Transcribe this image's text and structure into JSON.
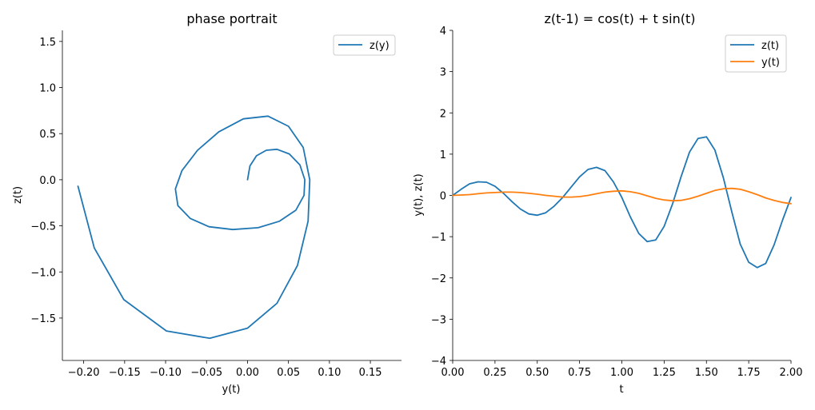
{
  "chart_data": [
    {
      "type": "line",
      "title": "phase portrait",
      "xlabel": "y(t)",
      "ylabel": "z(t)",
      "xlim": [
        -0.226,
        0.188
      ],
      "ylim": [
        -1.96,
        1.62
      ],
      "xticks": [
        -0.2,
        -0.15,
        -0.1,
        -0.05,
        0.0,
        0.05,
        0.1,
        0.15
      ],
      "xtick_labels": [
        "−0.20",
        "−0.15",
        "−0.10",
        "−0.05",
        "0.00",
        "0.05",
        "0.10",
        "0.15"
      ],
      "yticks": [
        -1.5,
        -1.0,
        -0.5,
        0.0,
        0.5,
        1.0,
        1.5
      ],
      "ytick_labels": [
        "−1.5",
        "−1.0",
        "−0.5",
        "0.0",
        "0.5",
        "1.0",
        "1.5"
      ],
      "legend_position": "top-right",
      "series": [
        {
          "name": "z(y)",
          "color": "#1f77b4",
          "x": [
            0.0,
            0.003,
            0.011,
            0.023,
            0.036,
            0.051,
            0.064,
            0.07,
            0.069,
            0.059,
            0.039,
            0.013,
            -0.018,
            -0.047,
            -0.07,
            -0.085,
            -0.088,
            -0.08,
            -0.061,
            -0.035,
            -0.005,
            0.025,
            0.05,
            0.068,
            0.076,
            0.074,
            0.061,
            0.036,
            0.0,
            -0.046,
            -0.099,
            -0.151,
            -0.187,
            -0.207
          ],
          "y": [
            0.0,
            0.15,
            0.26,
            0.32,
            0.33,
            0.28,
            0.16,
            0.0,
            -0.17,
            -0.33,
            -0.45,
            -0.52,
            -0.54,
            -0.51,
            -0.42,
            -0.28,
            -0.1,
            0.1,
            0.32,
            0.52,
            0.66,
            0.69,
            0.58,
            0.35,
            0.0,
            -0.45,
            -0.93,
            -1.34,
            -1.61,
            -1.72,
            -1.64,
            -1.3,
            -0.74,
            -0.07
          ]
        }
      ]
    },
    {
      "type": "line",
      "title": "z(t-1) = cos(t) + t sin(t)",
      "xlabel": "t",
      "ylabel": "y(t), z(t)",
      "xlim": [
        0.0,
        2.0
      ],
      "ylim": [
        -4.0,
        4.0
      ],
      "xticks": [
        0.0,
        0.25,
        0.5,
        0.75,
        1.0,
        1.25,
        1.5,
        1.75,
        2.0
      ],
      "xtick_labels": [
        "0.00",
        "0.25",
        "0.50",
        "0.75",
        "1.00",
        "1.25",
        "1.50",
        "1.75",
        "2.00"
      ],
      "yticks": [
        -4,
        -3,
        -2,
        -1,
        0,
        1,
        2,
        3,
        4
      ],
      "ytick_labels": [
        "−4",
        "−3",
        "−2",
        "−1",
        "0",
        "1",
        "2",
        "3",
        "4"
      ],
      "legend_position": "top-right",
      "x": [
        0.0,
        0.05,
        0.1,
        0.15,
        0.2,
        0.25,
        0.3,
        0.35,
        0.4,
        0.45,
        0.5,
        0.55,
        0.6,
        0.65,
        0.7,
        0.75,
        0.8,
        0.85,
        0.9,
        0.95,
        1.0,
        1.05,
        1.1,
        1.15,
        1.2,
        1.25,
        1.3,
        1.35,
        1.4,
        1.45,
        1.5,
        1.55,
        1.6,
        1.65,
        1.7,
        1.75,
        1.8,
        1.85,
        1.9,
        1.95,
        2.0
      ],
      "series": [
        {
          "name": "z(t)",
          "color": "#1f77b4",
          "values": [
            0.0,
            0.15,
            0.28,
            0.33,
            0.32,
            0.22,
            0.05,
            -0.15,
            -0.33,
            -0.45,
            -0.48,
            -0.42,
            -0.26,
            -0.05,
            0.2,
            0.45,
            0.63,
            0.68,
            0.6,
            0.33,
            -0.05,
            -0.52,
            -0.92,
            -1.12,
            -1.08,
            -0.75,
            -0.2,
            0.45,
            1.05,
            1.38,
            1.42,
            1.1,
            0.43,
            -0.4,
            -1.18,
            -1.62,
            -1.75,
            -1.65,
            -1.2,
            -0.6,
            -0.05
          ]
        },
        {
          "name": "y(t)",
          "color": "#ff7f0e",
          "values": [
            0.0,
            0.01,
            0.02,
            0.04,
            0.06,
            0.07,
            0.08,
            0.08,
            0.07,
            0.05,
            0.03,
            0.0,
            -0.02,
            -0.04,
            -0.04,
            -0.03,
            0.0,
            0.04,
            0.08,
            0.1,
            0.11,
            0.09,
            0.05,
            -0.01,
            -0.07,
            -0.11,
            -0.13,
            -0.12,
            -0.08,
            -0.02,
            0.05,
            0.12,
            0.16,
            0.17,
            0.15,
            0.09,
            0.02,
            -0.06,
            -0.12,
            -0.17,
            -0.2
          ]
        }
      ]
    }
  ]
}
